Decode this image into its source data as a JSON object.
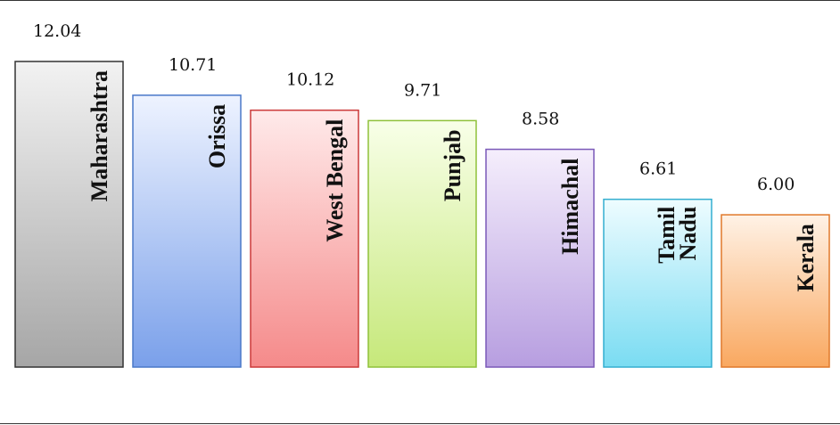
{
  "chart_data": {
    "type": "bar",
    "categories": [
      "Maharashtra",
      "Orissa",
      "West Bengal",
      "Punjab",
      "Himachal",
      "Tamil Nadu",
      "Kerala"
    ],
    "values": [
      12.04,
      10.71,
      10.12,
      9.71,
      8.58,
      6.61,
      6.0
    ],
    "value_labels": [
      "12.04",
      "10.71",
      "10.12",
      "9.71",
      "8.58",
      "6.61",
      "6.00"
    ],
    "title": "",
    "xlabel": "",
    "ylabel": "",
    "ylim": [
      0,
      12.04
    ],
    "grid": false,
    "legend": "none",
    "bar_colors": [
      {
        "top": "#f2f2f2",
        "bottom": "#a6a6a6",
        "stroke": "#333333"
      },
      {
        "top": "#eef3ff",
        "bottom": "#7aa0ea",
        "stroke": "#4a78c8"
      },
      {
        "top": "#ffeaea",
        "bottom": "#f58a8a",
        "stroke": "#cc3a3a"
      },
      {
        "top": "#f8ffe8",
        "bottom": "#c6e87a",
        "stroke": "#8fc13a"
      },
      {
        "top": "#f5eefc",
        "bottom": "#b79ee0",
        "stroke": "#7a58b8"
      },
      {
        "top": "#eefcff",
        "bottom": "#7adcf2",
        "stroke": "#34aed0"
      },
      {
        "top": "#fff2e6",
        "bottom": "#f9a860",
        "stroke": "#e0782a"
      }
    ]
  }
}
